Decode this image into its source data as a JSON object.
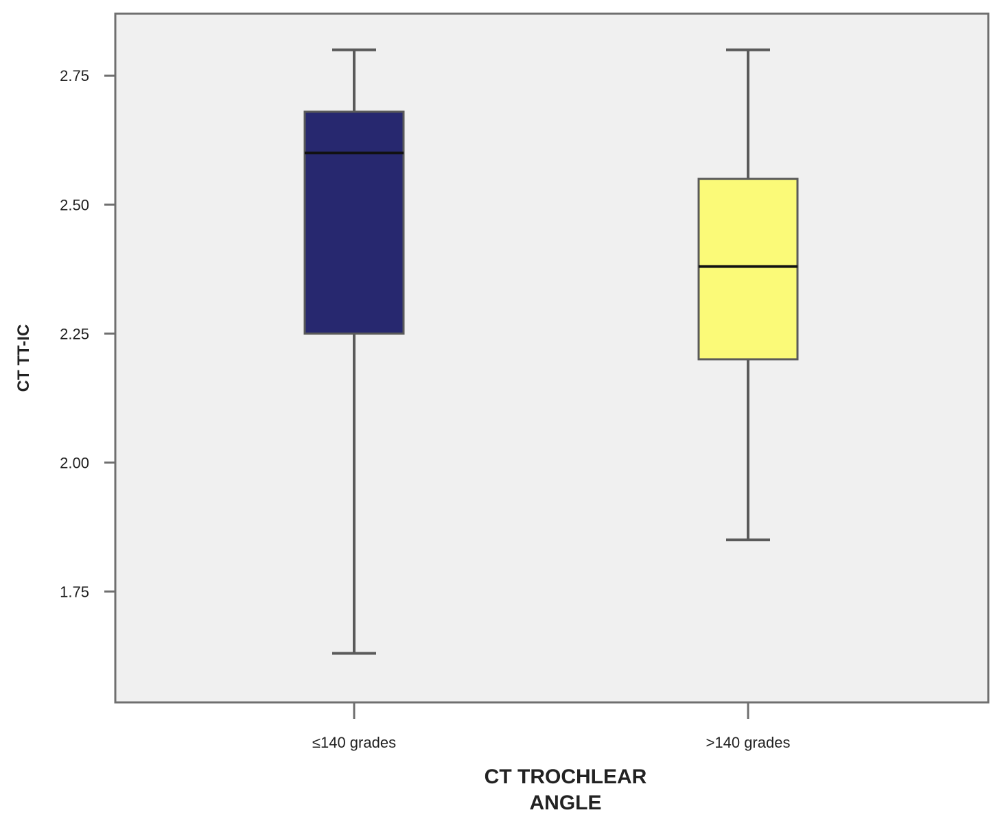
{
  "chart_data": {
    "type": "box",
    "title": "",
    "xlabel_lines": [
      "CT TROCHLEAR",
      "ANGLE"
    ],
    "ylabel": "CT TT-IC",
    "categories": [
      "≤140 grades",
      ">140 grades"
    ],
    "y_ticks": [
      1.75,
      2.0,
      2.25,
      2.5,
      2.75
    ],
    "y_tick_labels": [
      "1.75",
      "2.00",
      "2.25",
      "2.50",
      "2.75"
    ],
    "ylim": [
      1.535,
      2.87
    ],
    "grid": false,
    "legend": "none",
    "series": [
      {
        "category": "≤140 grades",
        "min": 1.63,
        "q1": 2.25,
        "median": 2.6,
        "q3": 2.68,
        "max": 2.8,
        "color": "#27286f"
      },
      {
        "category": ">140 grades",
        "min": 1.85,
        "q1": 2.2,
        "median": 2.38,
        "q3": 2.55,
        "max": 2.8,
        "color": "#fbfa78"
      }
    ],
    "plot_background": "#f0f0f0",
    "line_color": "#5a5a5a"
  }
}
